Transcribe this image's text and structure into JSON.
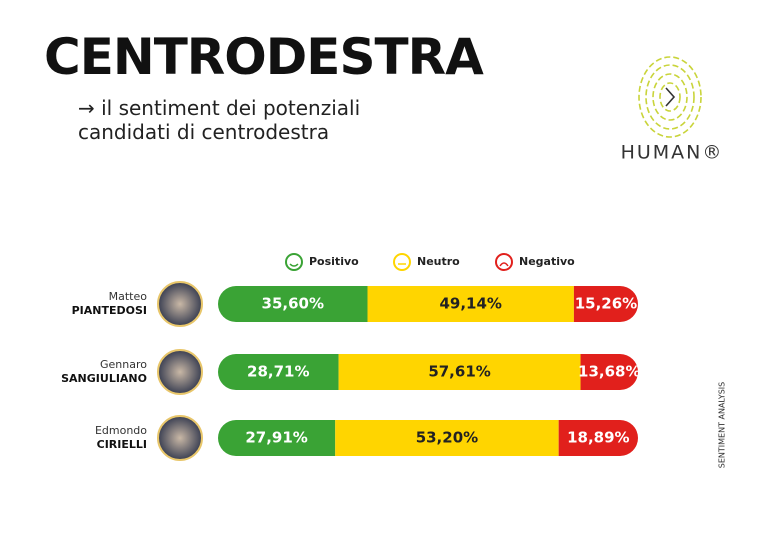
{
  "chart_data": {
    "type": "bar",
    "orientation": "horizontal",
    "stacked": true,
    "title": "CENTRODESTRA",
    "subtitle": "→ il sentiment dei potenziali candidati di centrodestra",
    "brand": "HUMAN®",
    "side_label": "SENTIMENT ANALYSIS",
    "first_names": [
      "Matteo",
      "Gennaro",
      "Edmondo"
    ],
    "categories": [
      "PIANTEDOSI",
      "SANGIULIANO",
      "CIRIELLI"
    ],
    "series": [
      {
        "name": "Positivo",
        "color": "#3aa335",
        "values": [
          35.6,
          28.71,
          27.91
        ],
        "value_labels": [
          "35,60%",
          "28,71%",
          "27,91%"
        ]
      },
      {
        "name": "Neutro",
        "color": "#ffd500",
        "values": [
          49.14,
          57.61,
          53.2
        ],
        "value_labels": [
          "49,14%",
          "57,61%",
          "53,20%"
        ]
      },
      {
        "name": "Negativo",
        "color": "#e1201c",
        "values": [
          15.26,
          13.68,
          18.89
        ],
        "value_labels": [
          "15,26%",
          "13,68%",
          "18,89%"
        ]
      }
    ]
  }
}
